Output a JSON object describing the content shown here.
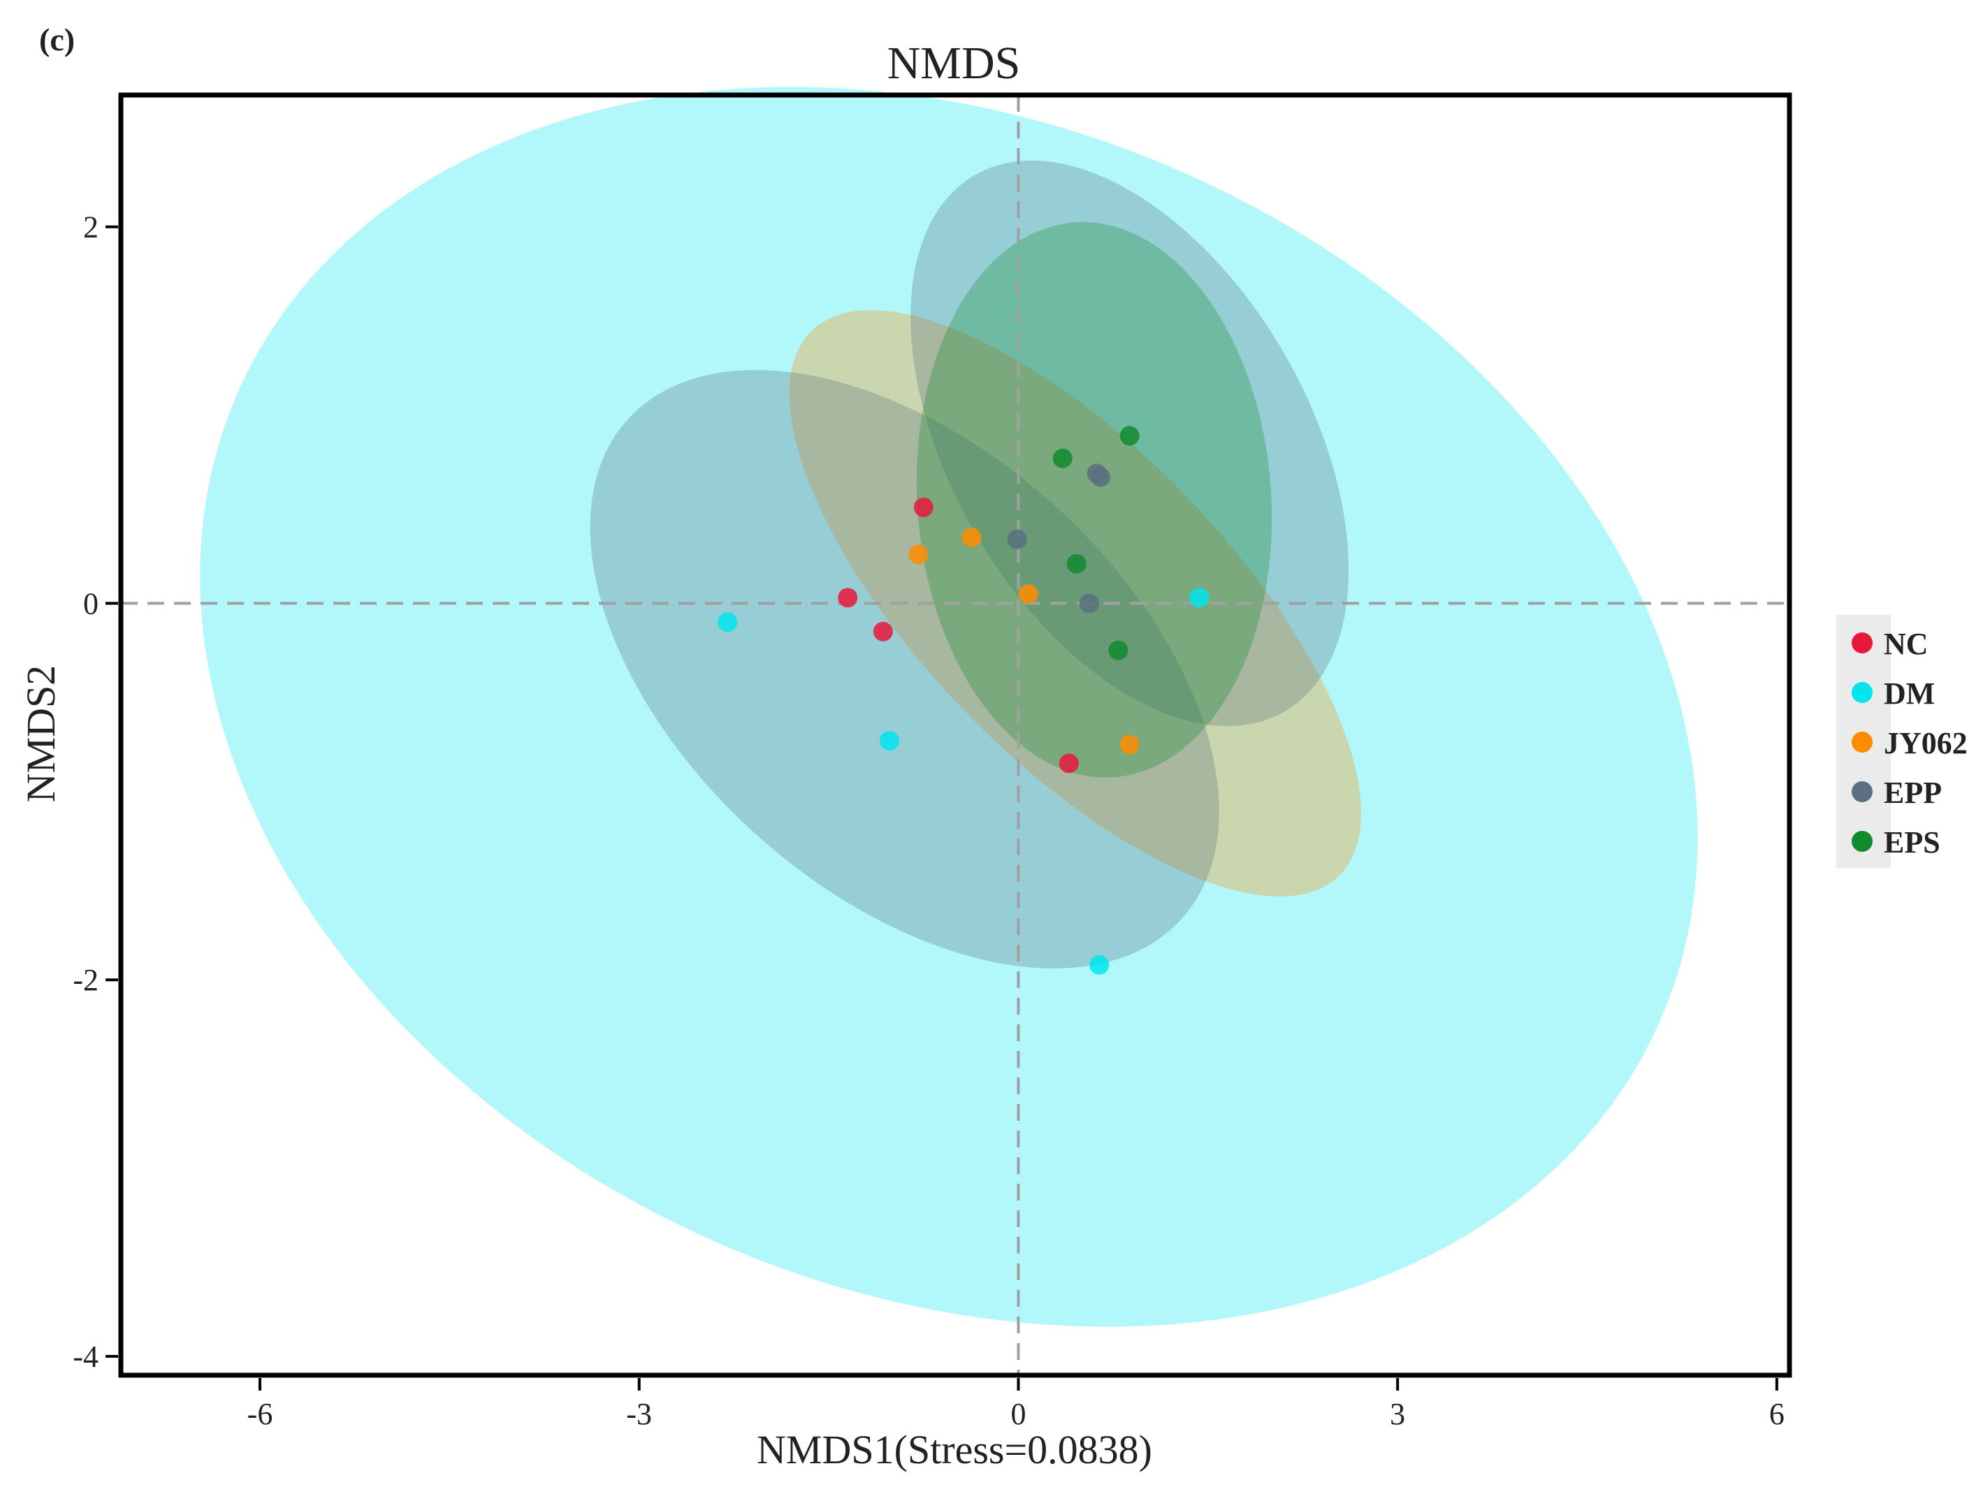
{
  "panel_label": "(c)",
  "chart_data": {
    "type": "scatter",
    "title": "NMDS",
    "xlabel": "NMDS1(Stress=0.0838)",
    "ylabel": "NMDS2",
    "xlim": [
      -7.1,
      6.1
    ],
    "ylim": [
      -4.1,
      2.7
    ],
    "xticks": [
      -6,
      -3,
      0,
      3,
      6
    ],
    "yticks": [
      -4,
      -2,
      0,
      2
    ],
    "reference_lines": {
      "x": 0,
      "y": 0,
      "style": "dashed"
    },
    "legend_position": "right",
    "series": [
      {
        "name": "NC",
        "color": "#e8173c",
        "points": [
          [
            -0.75,
            0.51
          ],
          [
            -1.35,
            0.03
          ],
          [
            -1.07,
            -0.15
          ],
          [
            0.4,
            -0.85
          ]
        ],
        "ellipse": null
      },
      {
        "name": "DM",
        "color": "#00e5ee",
        "points": [
          [
            -2.3,
            -0.1
          ],
          [
            -1.02,
            -0.73
          ],
          [
            1.43,
            0.03
          ],
          [
            0.64,
            -1.92
          ]
        ],
        "ellipse": {
          "cx": -0.55,
          "cy": -0.55,
          "rx": 6.15,
          "ry": 3.1,
          "angle_deg": -24,
          "opacity": 0.3
        }
      },
      {
        "name": "JY062",
        "color": "#ff8c00",
        "points": [
          [
            -0.79,
            0.26
          ],
          [
            -0.37,
            0.35
          ],
          [
            0.08,
            0.05
          ],
          [
            0.88,
            -0.75
          ]
        ],
        "ellipse": {
          "cx": 0.45,
          "cy": 0.0,
          "rx": 3.0,
          "ry": 0.82,
          "angle_deg": -46,
          "opacity": 0.3
        }
      },
      {
        "name": "EPP",
        "color": "#5a7080",
        "points": [
          [
            -0.01,
            0.34
          ],
          [
            0.56,
            0.0
          ],
          [
            0.62,
            0.69
          ],
          [
            0.65,
            0.67
          ]
        ],
        "ellipse": {
          "cx": -0.9,
          "cy": -0.35,
          "rx": 2.95,
          "ry": 1.18,
          "angle_deg": -42,
          "opacity": 0.3
        },
        "ellipse_extra": {
          "cx": 0.88,
          "cy": 0.85,
          "rx": 2.45,
          "ry": 0.95,
          "angle_deg": -60,
          "opacity": 0.3
        }
      },
      {
        "name": "EPS",
        "color": "#128a2e",
        "points": [
          [
            0.35,
            0.77
          ],
          [
            0.88,
            0.89
          ],
          [
            0.46,
            0.21
          ],
          [
            0.79,
            -0.25
          ]
        ],
        "ellipse": {
          "cx": 0.6,
          "cy": 0.55,
          "rx": 2.2,
          "ry": 0.94,
          "angle_deg": -86,
          "opacity": 0.3
        }
      }
    ]
  }
}
